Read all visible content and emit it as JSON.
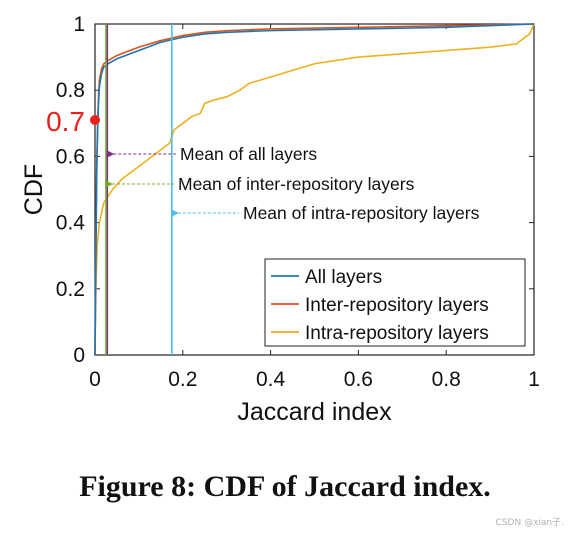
{
  "chart_data": {
    "type": "line",
    "xlabel": "Jaccard index",
    "ylabel": "CDF",
    "xlim": [
      0,
      1
    ],
    "ylim": [
      0,
      1
    ],
    "xticks": [
      "0",
      "0.2",
      "0.4",
      "0.6",
      "0.8",
      "1"
    ],
    "yticks": [
      "0",
      "0.2",
      "0.4",
      "0.6",
      "0.8",
      "1"
    ],
    "grid": false,
    "legend_position": "bottom-right",
    "series": [
      {
        "name": "All layers",
        "color": "#1f77b4",
        "points": [
          [
            0,
            0
          ],
          [
            0.002,
            0.3
          ],
          [
            0.004,
            0.55
          ],
          [
            0.006,
            0.68
          ],
          [
            0.008,
            0.76
          ],
          [
            0.01,
            0.81
          ],
          [
            0.015,
            0.85
          ],
          [
            0.02,
            0.87
          ],
          [
            0.03,
            0.88
          ],
          [
            0.05,
            0.895
          ],
          [
            0.08,
            0.91
          ],
          [
            0.1,
            0.92
          ],
          [
            0.15,
            0.945
          ],
          [
            0.2,
            0.96
          ],
          [
            0.25,
            0.97
          ],
          [
            0.3,
            0.975
          ],
          [
            0.4,
            0.98
          ],
          [
            0.6,
            0.985
          ],
          [
            0.8,
            0.99
          ],
          [
            1,
            1
          ]
        ]
      },
      {
        "name": "Inter-repository layers",
        "color": "#d95319",
        "points": [
          [
            0,
            0
          ],
          [
            0.002,
            0.35
          ],
          [
            0.004,
            0.58
          ],
          [
            0.006,
            0.7
          ],
          [
            0.008,
            0.78
          ],
          [
            0.01,
            0.83
          ],
          [
            0.015,
            0.865
          ],
          [
            0.02,
            0.88
          ],
          [
            0.03,
            0.89
          ],
          [
            0.05,
            0.905
          ],
          [
            0.08,
            0.92
          ],
          [
            0.1,
            0.93
          ],
          [
            0.15,
            0.95
          ],
          [
            0.2,
            0.965
          ],
          [
            0.25,
            0.975
          ],
          [
            0.3,
            0.98
          ],
          [
            0.4,
            0.985
          ],
          [
            0.6,
            0.99
          ],
          [
            0.8,
            0.995
          ],
          [
            1,
            1
          ]
        ]
      },
      {
        "name": "Intra-repository layers",
        "color": "#edb120",
        "points": [
          [
            0,
            0
          ],
          [
            0.002,
            0.2
          ],
          [
            0.005,
            0.33
          ],
          [
            0.01,
            0.4
          ],
          [
            0.02,
            0.46
          ],
          [
            0.04,
            0.5
          ],
          [
            0.06,
            0.53
          ],
          [
            0.08,
            0.55
          ],
          [
            0.1,
            0.57
          ],
          [
            0.12,
            0.59
          ],
          [
            0.15,
            0.62
          ],
          [
            0.17,
            0.64
          ],
          [
            0.18,
            0.68
          ],
          [
            0.2,
            0.7
          ],
          [
            0.22,
            0.72
          ],
          [
            0.24,
            0.73
          ],
          [
            0.25,
            0.76
          ],
          [
            0.27,
            0.77
          ],
          [
            0.3,
            0.78
          ],
          [
            0.33,
            0.8
          ],
          [
            0.35,
            0.82
          ],
          [
            0.4,
            0.84
          ],
          [
            0.45,
            0.86
          ],
          [
            0.5,
            0.88
          ],
          [
            0.6,
            0.9
          ],
          [
            0.7,
            0.91
          ],
          [
            0.8,
            0.92
          ],
          [
            0.9,
            0.93
          ],
          [
            0.96,
            0.94
          ],
          [
            0.99,
            0.97
          ],
          [
            1,
            1
          ]
        ]
      }
    ],
    "mean_lines": [
      {
        "label": "Mean of all layers",
        "x": 0.028,
        "color": "#7e2f8e",
        "arrow_y": 0.61
      },
      {
        "label": "Mean of inter-repository layers",
        "x": 0.025,
        "color": "#77ac30",
        "arrow_y": 0.52
      },
      {
        "label": "Mean of intra-repository layers",
        "x": 0.175,
        "color": "#4dbeee",
        "arrow_y": 0.435
      }
    ],
    "highlight": {
      "label": "0.7",
      "y": 0.71,
      "color": "#e8221b"
    }
  },
  "caption": "Figure 8: CDF of Jaccard index.",
  "watermark": "CSDN @xian子."
}
